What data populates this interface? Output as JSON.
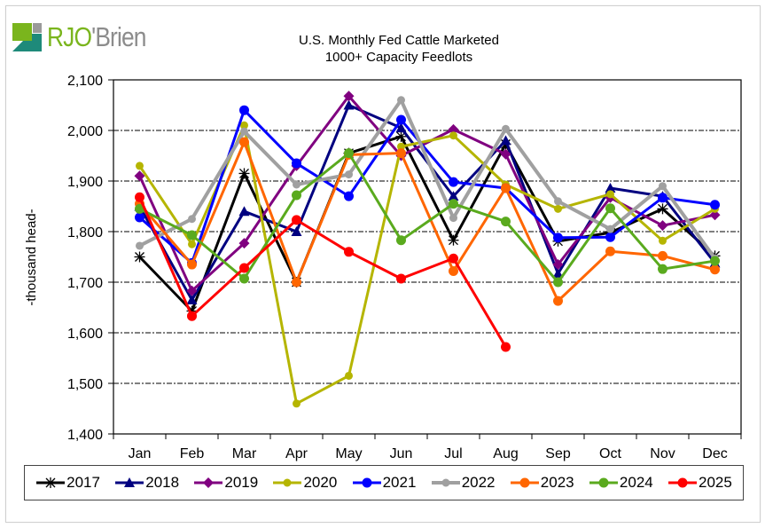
{
  "logo": {
    "part1": "RJO",
    "part2": "'Brien"
  },
  "chart_data": {
    "type": "line",
    "title": "U.S. Monthly Fed Cattle Marketed",
    "subtitle": "1000+ Capacity Feedlots",
    "xlabel": "",
    "ylabel": "-thousand head-",
    "ylim": [
      1400,
      2100
    ],
    "yticks": [
      1400,
      1500,
      1600,
      1700,
      1800,
      1900,
      2000,
      2100
    ],
    "ytick_labels": [
      "1,400",
      "1,500",
      "1,600",
      "1,700",
      "1,800",
      "1,900",
      "2,000",
      "2,100"
    ],
    "grid": "horizontal dash-dot",
    "legend_position": "bottom",
    "categories": [
      "Jan",
      "Feb",
      "Mar",
      "Apr",
      "May",
      "Jun",
      "Jul",
      "Aug",
      "Sep",
      "Oct",
      "Nov",
      "Dec"
    ],
    "series": [
      {
        "name": "2017",
        "color": "#000000",
        "marker": "star",
        "width": 3,
        "values": [
          1750,
          1643,
          1915,
          1700,
          1955,
          1988,
          1783,
          1973,
          1781,
          1798,
          1845,
          1752
        ]
      },
      {
        "name": "2018",
        "color": "#000080",
        "marker": "triangle",
        "width": 3,
        "values": [
          1850,
          1665,
          1840,
          1800,
          2050,
          2005,
          1870,
          1980,
          1717,
          1886,
          1870,
          1738
        ]
      },
      {
        "name": "2019",
        "color": "#800080",
        "marker": "diamond",
        "width": 3,
        "values": [
          1910,
          1683,
          1777,
          1930,
          2068,
          1950,
          2002,
          1953,
          1735,
          1867,
          1812,
          1833
        ]
      },
      {
        "name": "2020",
        "color": "#b5b500",
        "marker": "circle-small",
        "width": 3,
        "values": [
          1930,
          1775,
          2010,
          1460,
          1515,
          1968,
          1990,
          1893,
          1845,
          1874,
          1782,
          1845
        ]
      },
      {
        "name": "2021",
        "color": "#0000ff",
        "marker": "circle",
        "width": 3,
        "values": [
          1828,
          1738,
          2040,
          1935,
          1870,
          2021,
          1898,
          1886,
          1788,
          1789,
          1867,
          1853
        ]
      },
      {
        "name": "2022",
        "color": "#a0a0a0",
        "marker": "circle-small",
        "width": 4,
        "values": [
          1772,
          1825,
          1998,
          1893,
          1913,
          2060,
          1827,
          2003,
          1860,
          1805,
          1890,
          1747
        ]
      },
      {
        "name": "2023",
        "color": "#ff6600",
        "marker": "circle",
        "width": 3,
        "values": [
          1855,
          1735,
          1977,
          1700,
          1952,
          1955,
          1722,
          1886,
          1663,
          1761,
          1752,
          1725
        ]
      },
      {
        "name": "2024",
        "color": "#5aaa1e",
        "marker": "circle",
        "width": 3,
        "values": [
          1845,
          1793,
          1707,
          1872,
          1955,
          1783,
          1855,
          1820,
          1700,
          1846,
          1726,
          1742
        ]
      },
      {
        "name": "2025",
        "color": "#ff0000",
        "marker": "circle",
        "width": 3,
        "values": [
          1868,
          1633,
          1728,
          1823,
          1760,
          1707,
          1747,
          1572,
          null,
          null,
          null,
          null
        ]
      }
    ]
  }
}
